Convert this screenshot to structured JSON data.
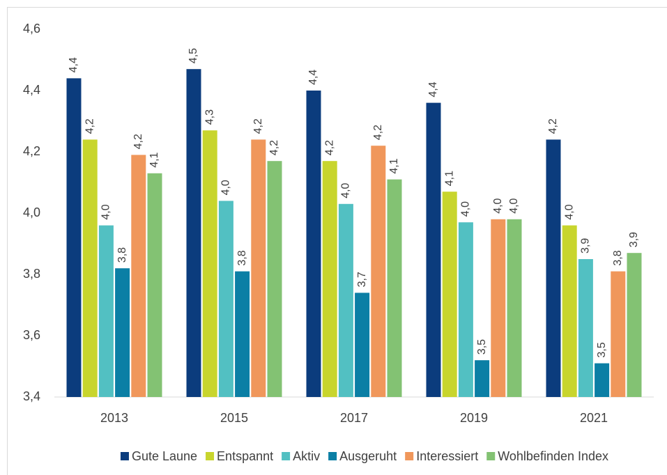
{
  "chart_data": {
    "type": "bar",
    "categories": [
      "2013",
      "2015",
      "2017",
      "2019",
      "2021"
    ],
    "series": [
      {
        "name": "Gute Laune",
        "color": "#0b3c7d",
        "values": [
          4.44,
          4.47,
          4.4,
          4.36,
          4.24
        ],
        "value_labels": [
          "4,4",
          "4,5",
          "4,4",
          "4,4",
          "4,2"
        ]
      },
      {
        "name": "Entspannt",
        "color": "#c8d52d",
        "values": [
          4.24,
          4.27,
          4.17,
          4.07,
          3.96
        ],
        "value_labels": [
          "4,2",
          "4,3",
          "4,2",
          "4,1",
          "4,0"
        ]
      },
      {
        "name": "Aktiv",
        "color": "#52c0c2",
        "values": [
          3.96,
          4.04,
          4.03,
          3.97,
          3.85
        ],
        "value_labels": [
          "4,0",
          "4,0",
          "4,0",
          "4,0",
          "3,9"
        ]
      },
      {
        "name": "Ausgeruht",
        "color": "#0b7fa5",
        "values": [
          3.82,
          3.81,
          3.74,
          3.52,
          3.51
        ],
        "value_labels": [
          "3,8",
          "3,8",
          "3,7",
          "3,5",
          "3,5"
        ]
      },
      {
        "name": "Interessiert",
        "color": "#f0975b",
        "values": [
          4.19,
          4.24,
          4.22,
          3.98,
          3.81
        ],
        "value_labels": [
          "4,2",
          "4,2",
          "4,2",
          "4,0",
          "3,8"
        ]
      },
      {
        "name": "Wohlbefinden Index",
        "color": "#83c273",
        "values": [
          4.13,
          4.17,
          4.11,
          3.98,
          3.87
        ],
        "value_labels": [
          "4,1",
          "4,2",
          "4,1",
          "4,0",
          "3,9"
        ]
      }
    ],
    "ylim": [
      3.4,
      4.6
    ],
    "yticks": [
      {
        "value": 3.4,
        "label": "3,4"
      },
      {
        "value": 3.6,
        "label": "3,6"
      },
      {
        "value": 3.8,
        "label": "3,8"
      },
      {
        "value": 4.0,
        "label": "4,0"
      },
      {
        "value": 4.2,
        "label": "4,2"
      },
      {
        "value": 4.4,
        "label": "4,4"
      },
      {
        "value": 4.6,
        "label": "4,6"
      }
    ],
    "grid": false,
    "legend": "bottom"
  }
}
